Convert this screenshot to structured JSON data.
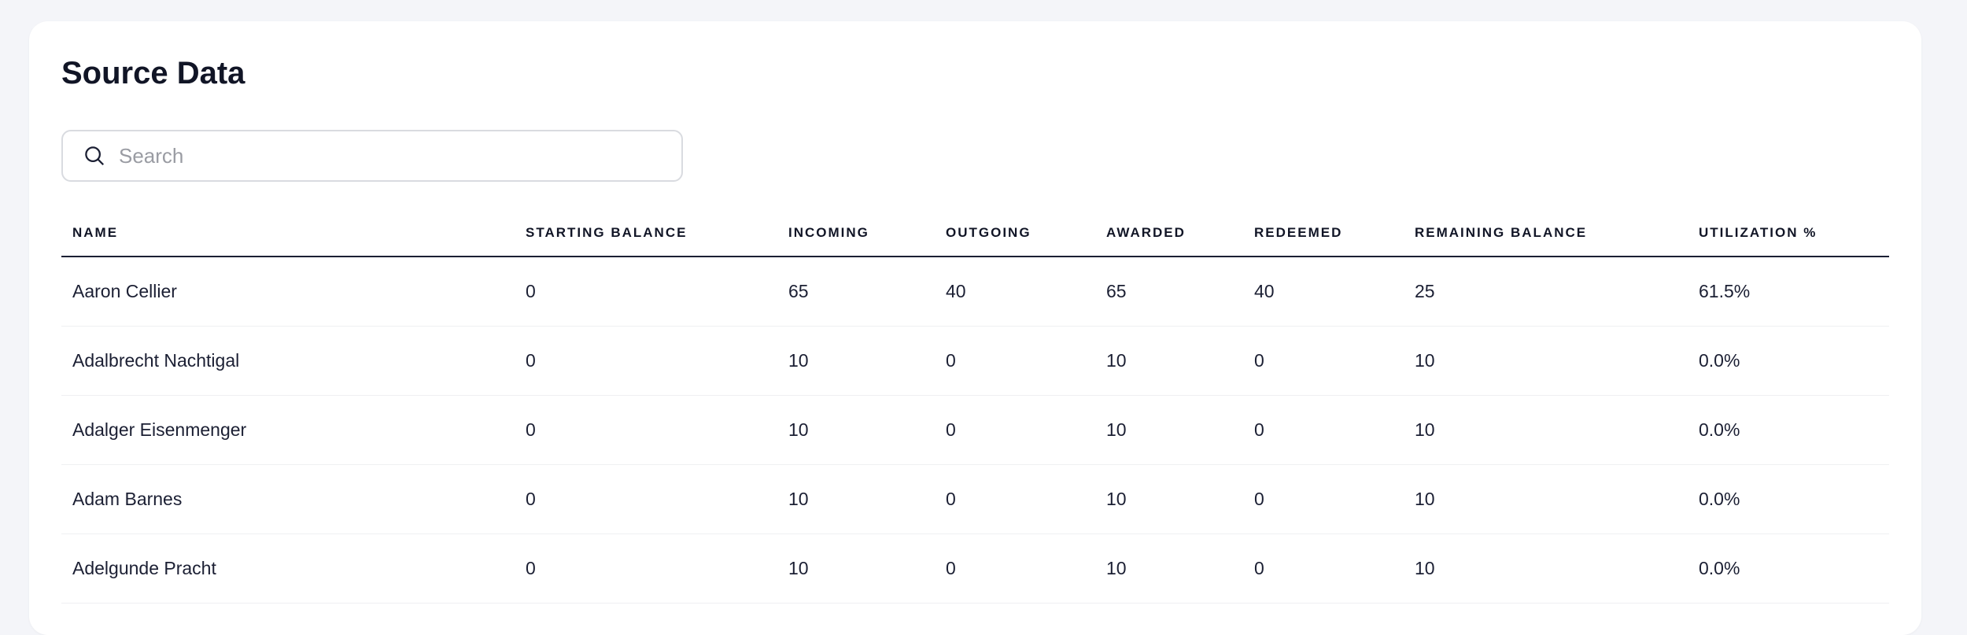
{
  "title": "Source Data",
  "search": {
    "placeholder": "Search",
    "value": ""
  },
  "columns": [
    "NAME",
    "STARTING BALANCE",
    "INCOMING",
    "OUTGOING",
    "AWARDED",
    "REDEEMED",
    "REMAINING BALANCE",
    "UTILIZATION %"
  ],
  "rows": [
    [
      "Aaron Cellier",
      "0",
      "65",
      "40",
      "65",
      "40",
      "25",
      "61.5%"
    ],
    [
      "Adalbrecht Nachtigal",
      "0",
      "10",
      "0",
      "10",
      "0",
      "10",
      "0.0%"
    ],
    [
      "Adalger Eisenmenger",
      "0",
      "10",
      "0",
      "10",
      "0",
      "10",
      "0.0%"
    ],
    [
      "Adam Barnes",
      "0",
      "10",
      "0",
      "10",
      "0",
      "10",
      "0.0%"
    ],
    [
      "Adelgunde Pracht",
      "0",
      "10",
      "0",
      "10",
      "0",
      "10",
      "0.0%"
    ]
  ]
}
